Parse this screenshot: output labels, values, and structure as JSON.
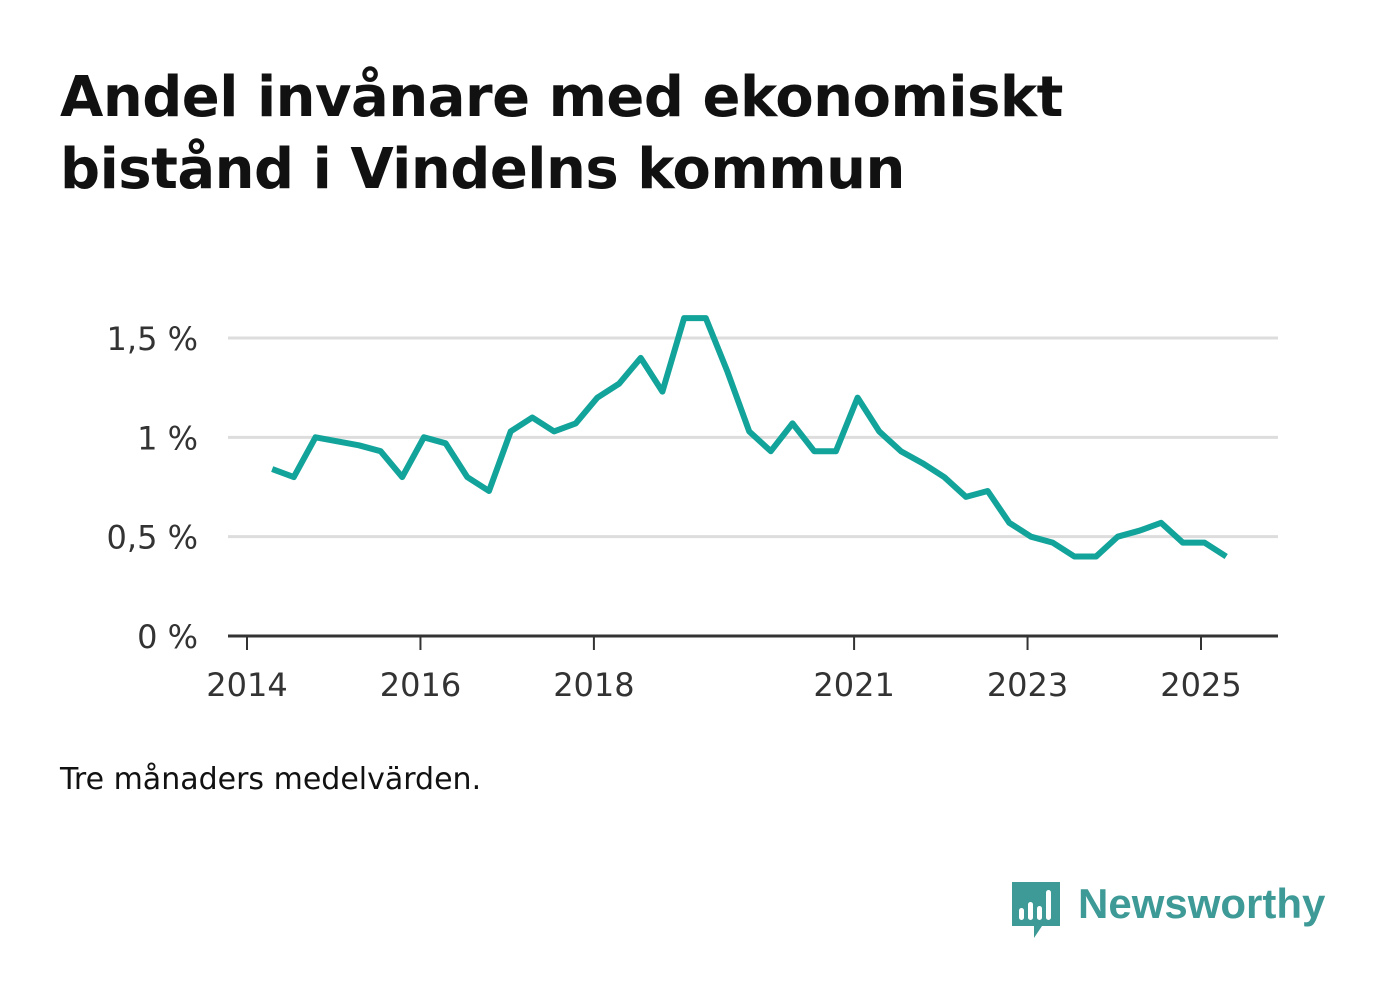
{
  "title": "Andel invånare med ekonomiskt bistånd i Vindelns kommun",
  "note": "Tre månaders medelvärden.",
  "brand": {
    "name": "Newsworthy",
    "color": "#3d9a96",
    "icon": "newsworthy-logo-icon"
  },
  "colors": {
    "line": "#12a39a",
    "grid": "#dddddd",
    "axis": "#333333"
  },
  "chart_data": {
    "type": "line",
    "title": "Andel invånare med ekonomiskt bistånd i Vindelns kommun",
    "xlabel": "",
    "ylabel": "",
    "x_ticks": [
      {
        "label": "2014",
        "value": 2014.0
      },
      {
        "label": "2016",
        "value": 2016.0
      },
      {
        "label": "2018",
        "value": 2018.0
      },
      {
        "label": "2021",
        "value": 2021.0
      },
      {
        "label": "2023",
        "value": 2023.0
      },
      {
        "label": "2025",
        "value": 2025.0
      }
    ],
    "y_ticks": [
      {
        "label": "0 %",
        "value": 0
      },
      {
        "label": "0,5 %",
        "value": 0.5
      },
      {
        "label": "1 %",
        "value": 1.0
      },
      {
        "label": "1,5 %",
        "value": 1.5
      }
    ],
    "xlim": [
      2014.0,
      2026.0
    ],
    "ylim": [
      0,
      1.65
    ],
    "grid": true,
    "series": [
      {
        "x": [
          2014.29,
          2014.54,
          2014.79,
          2015.04,
          2015.29,
          2015.54,
          2015.79,
          2016.04,
          2016.29,
          2016.54,
          2016.79,
          2017.04,
          2017.29,
          2017.54,
          2017.79,
          2018.04,
          2018.29,
          2018.54,
          2018.79,
          2019.04,
          2019.29,
          2019.54,
          2019.79,
          2020.04,
          2020.29,
          2020.54,
          2020.79,
          2021.04,
          2021.29,
          2021.54,
          2021.79,
          2022.04,
          2022.29,
          2022.54,
          2022.79,
          2023.04,
          2023.29,
          2023.54,
          2023.79,
          2024.04,
          2024.29,
          2024.54,
          2024.79,
          2025.04,
          2025.29
        ],
        "values": [
          0.84,
          0.8,
          1.0,
          0.98,
          0.96,
          0.93,
          0.8,
          1.0,
          0.97,
          0.8,
          0.73,
          1.03,
          1.1,
          1.03,
          1.07,
          1.2,
          1.27,
          1.4,
          1.23,
          1.6,
          1.6,
          1.33,
          1.03,
          0.93,
          1.07,
          0.93,
          0.93,
          1.2,
          1.03,
          0.93,
          0.87,
          0.8,
          0.7,
          0.73,
          0.57,
          0.5,
          0.47,
          0.4,
          0.4,
          0.5,
          0.53,
          0.57,
          0.47,
          0.47,
          0.4
        ]
      }
    ]
  }
}
